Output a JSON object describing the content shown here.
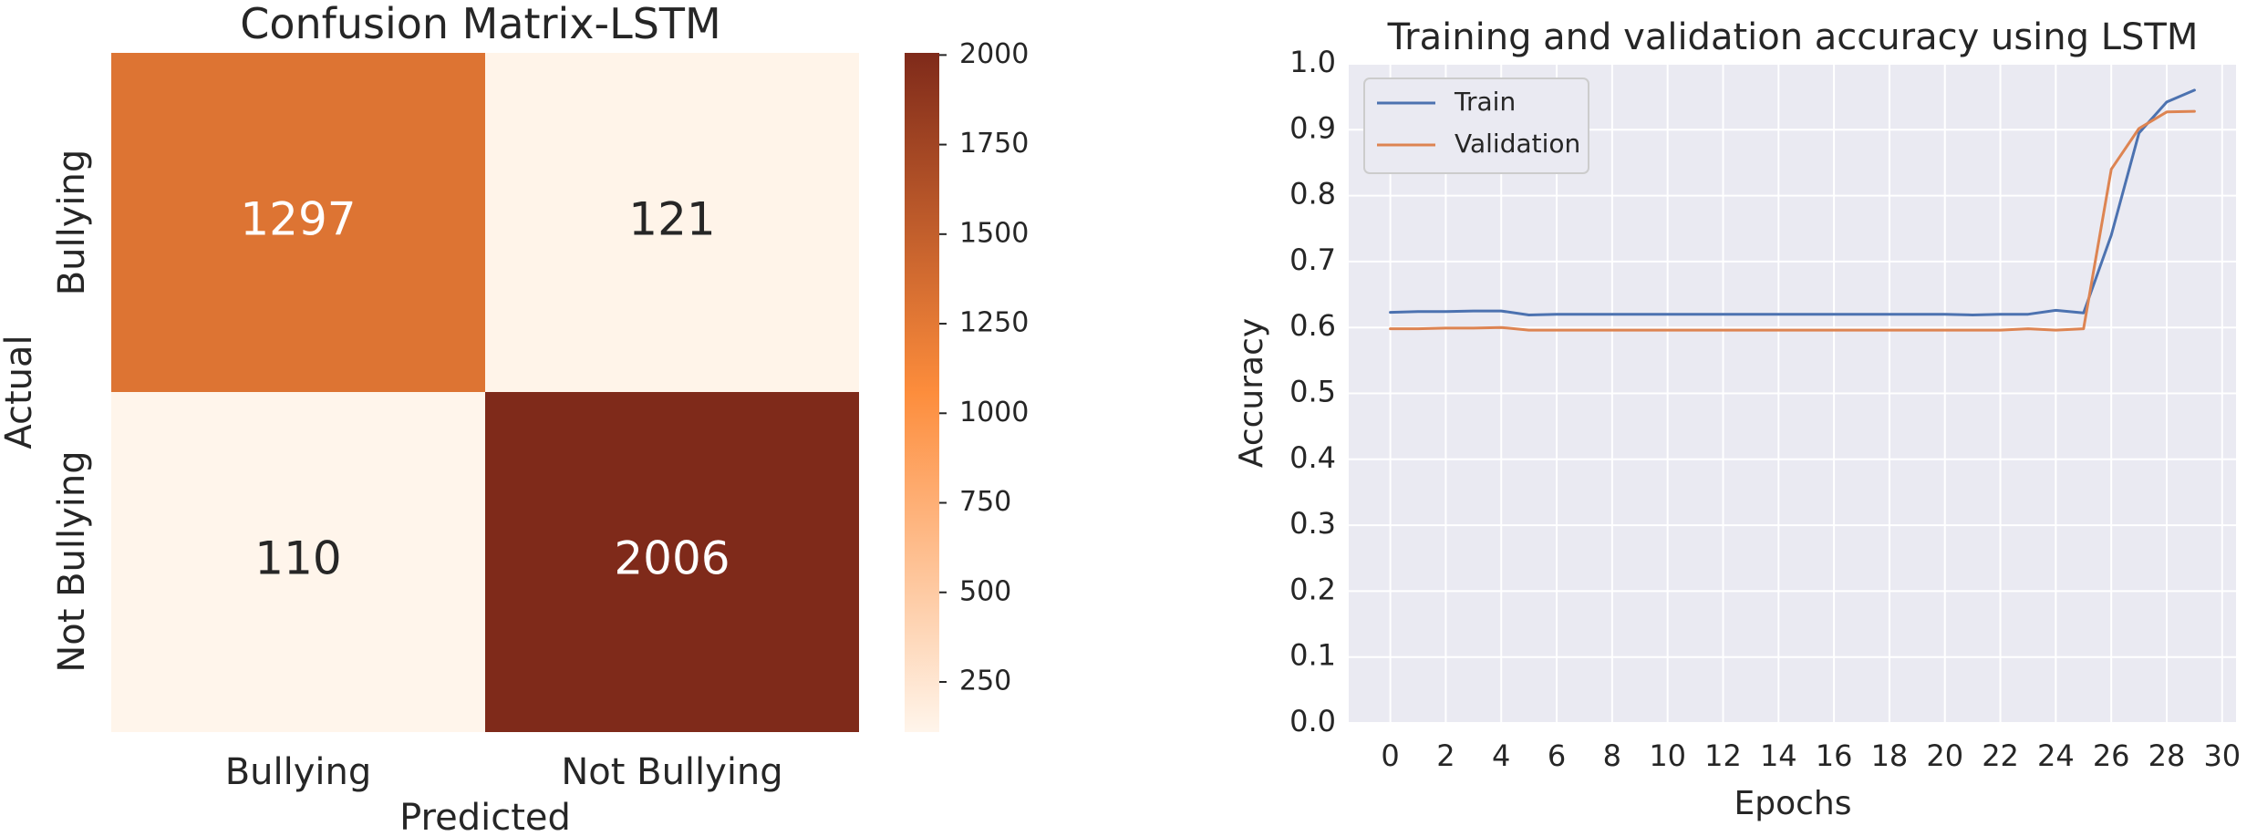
{
  "chart_data": [
    {
      "type": "heatmap",
      "title": "Confusion Matrix-LSTM",
      "xlabel": "Predicted",
      "ylabel": "Actual",
      "x_categories": [
        "Bullying",
        "Not Bullying"
      ],
      "y_categories": [
        "Bullying",
        "Not Bullying"
      ],
      "values": [
        [
          1297,
          121
        ],
        [
          110,
          2006
        ]
      ],
      "value_labels": [
        [
          "1297",
          "121"
        ],
        [
          "110",
          "2006"
        ]
      ],
      "colormap": "Oranges",
      "colors": {
        "low": "#fff5eb",
        "mid": "#fd8d3c",
        "high": "#7f2a1a"
      },
      "colorbar": {
        "range": [
          110,
          2006
        ],
        "ticks": [
          250,
          500,
          750,
          1000,
          1250,
          1500,
          1750,
          2000
        ],
        "tick_labels": [
          "250",
          "500",
          "750",
          "1000",
          "1250",
          "1500",
          "1750",
          "2000"
        ]
      }
    },
    {
      "type": "line",
      "title": "Training and validation accuracy using LSTM",
      "xlabel": "Epochs",
      "ylabel": "Accuracy",
      "xlim": [
        -1.5,
        30.5
      ],
      "ylim": [
        0.0,
        1.0
      ],
      "x_ticks": [
        0,
        2,
        4,
        6,
        8,
        10,
        12,
        14,
        16,
        18,
        20,
        22,
        24,
        26,
        28,
        30
      ],
      "x_tick_labels": [
        "0",
        "2",
        "4",
        "6",
        "8",
        "10",
        "12",
        "14",
        "16",
        "18",
        "20",
        "22",
        "24",
        "26",
        "28",
        "30"
      ],
      "y_ticks": [
        0.0,
        0.1,
        0.2,
        0.3,
        0.4,
        0.5,
        0.6,
        0.7,
        0.8,
        0.9,
        1.0
      ],
      "y_tick_labels": [
        "0.0",
        "0.1",
        "0.2",
        "0.3",
        "0.4",
        "0.5",
        "0.6",
        "0.7",
        "0.8",
        "0.9",
        "1.0"
      ],
      "grid": true,
      "background": "#eaeaf2",
      "legend_position": "top-left",
      "x": [
        0,
        1,
        2,
        3,
        4,
        5,
        6,
        7,
        8,
        9,
        10,
        11,
        12,
        13,
        14,
        15,
        16,
        17,
        18,
        19,
        20,
        21,
        22,
        23,
        24,
        25,
        26,
        27,
        28,
        29
      ],
      "series": [
        {
          "name": "Train",
          "color": "#4c72b0",
          "values": [
            0.623,
            0.624,
            0.624,
            0.625,
            0.625,
            0.619,
            0.62,
            0.62,
            0.62,
            0.62,
            0.62,
            0.62,
            0.62,
            0.62,
            0.62,
            0.62,
            0.62,
            0.62,
            0.62,
            0.62,
            0.62,
            0.619,
            0.62,
            0.62,
            0.626,
            0.622,
            0.74,
            0.895,
            0.942,
            0.96
          ]
        },
        {
          "name": "Validation",
          "color": "#dd8452",
          "values": [
            0.598,
            0.598,
            0.599,
            0.599,
            0.6,
            0.596,
            0.596,
            0.596,
            0.596,
            0.596,
            0.596,
            0.596,
            0.596,
            0.596,
            0.596,
            0.596,
            0.596,
            0.596,
            0.596,
            0.596,
            0.596,
            0.596,
            0.596,
            0.598,
            0.596,
            0.598,
            0.84,
            0.902,
            0.927,
            0.928
          ]
        }
      ]
    }
  ]
}
